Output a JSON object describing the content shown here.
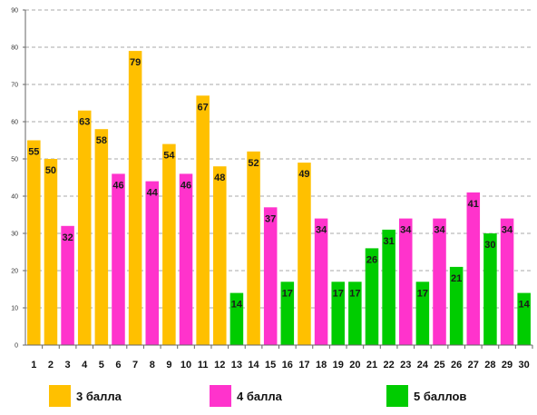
{
  "chart_data": {
    "type": "bar",
    "title": "",
    "xlabel": "",
    "ylabel": "",
    "ylim": [
      0,
      90
    ],
    "yticks": [
      0,
      10,
      20,
      30,
      40,
      50,
      60,
      70,
      80,
      90
    ],
    "grid": true,
    "legend_position": "bottom",
    "categories": [
      "1",
      "2",
      "3",
      "4",
      "5",
      "6",
      "7",
      "8",
      "9",
      "10",
      "11",
      "12",
      "13",
      "14",
      "15",
      "16",
      "17",
      "18",
      "19",
      "20",
      "21",
      "22",
      "23",
      "24",
      "25",
      "26",
      "27",
      "28",
      "29",
      "30"
    ],
    "values": [
      55,
      50,
      32,
      63,
      58,
      46,
      79,
      44,
      54,
      46,
      67,
      48,
      14,
      52,
      37,
      17,
      49,
      34,
      17,
      17,
      26,
      31,
      34,
      17,
      34,
      21,
      41,
      30,
      34,
      14
    ],
    "groups": [
      "3",
      "3",
      "4",
      "3",
      "3",
      "4",
      "3",
      "4",
      "3",
      "4",
      "3",
      "3",
      "5",
      "3",
      "4",
      "5",
      "3",
      "4",
      "5",
      "5",
      "5",
      "5",
      "4",
      "5",
      "4",
      "5",
      "4",
      "5",
      "4",
      "5"
    ],
    "legend": [
      {
        "key": "3",
        "label": "3 балла",
        "color": "#FFC000"
      },
      {
        "key": "4",
        "label": "4 балла",
        "color": "#FF33CC"
      },
      {
        "key": "5",
        "label": "5 баллов",
        "color": "#00CC00"
      }
    ]
  }
}
